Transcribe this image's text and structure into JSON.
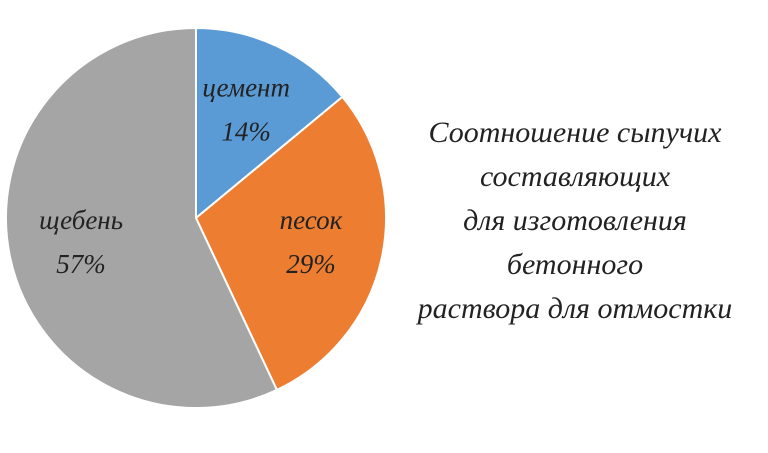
{
  "chart_data": {
    "type": "pie",
    "title": [
      "Соотношение сыпучих",
      "составляющих",
      "для изготовления",
      "бетонного",
      "раствора для отмостки"
    ],
    "categories": [
      "цемент",
      "песок",
      "щебень"
    ],
    "values": [
      14,
      29,
      57
    ],
    "value_labels": [
      "14%",
      "29%",
      "57%"
    ],
    "colors": [
      "#5b9bd5",
      "#ed7d31",
      "#a5a5a5"
    ]
  }
}
